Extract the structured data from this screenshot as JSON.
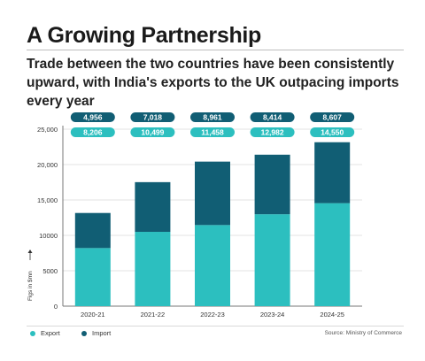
{
  "header": {
    "title": "A Growing Partnership",
    "subtitle": "Trade between the two countries have been consistently upward, with India's exports to the UK outpacing imports every year"
  },
  "colors": {
    "export": "#2cbfbf",
    "import": "#115e74",
    "grid": "#e3e3e3",
    "axis": "#777777"
  },
  "chart_data": {
    "type": "bar",
    "stacked": true,
    "categories": [
      "2020-21",
      "2021-22",
      "2022-23",
      "2023-24",
      "2024-25"
    ],
    "series": [
      {
        "name": "Export",
        "values": [
          8206,
          10499,
          11458,
          12982,
          14550
        ]
      },
      {
        "name": "Import",
        "values": [
          4956,
          7018,
          8961,
          8414,
          8607
        ]
      }
    ],
    "value_labels": {
      "Export": [
        "8,206",
        "10,499",
        "11,458",
        "12,982",
        "14,550"
      ],
      "Import": [
        "4,956",
        "7,018",
        "8,961",
        "8,414",
        "8,607"
      ]
    },
    "ylabel": "Figs in $mn",
    "yticks": [
      0,
      5000,
      10000,
      15000,
      20000,
      25000
    ],
    "ytick_labels": [
      "0",
      "5000",
      "10000",
      "15,000",
      "20,000",
      "25,000"
    ],
    "ylim": [
      0,
      25000
    ],
    "grid": true,
    "legend_position": "bottom-left"
  },
  "legend": {
    "export_label": "Export",
    "import_label": "Import"
  },
  "source": "Source: Ministry of Commerce"
}
